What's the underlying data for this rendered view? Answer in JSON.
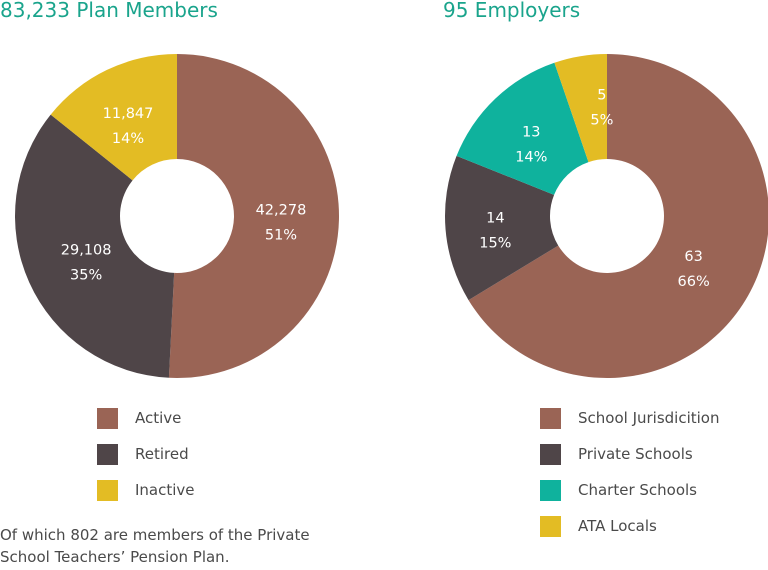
{
  "chart_data": [
    {
      "type": "pie",
      "style": "donut",
      "title": "83,233 Plan Members",
      "slices": [
        {
          "name": "Active",
          "value": 42278,
          "value_label": "42,278",
          "percent_label": "51%",
          "color": "#9a6455"
        },
        {
          "name": "Retired",
          "value": 29108,
          "value_label": "29,108",
          "percent_label": "35%",
          "color": "#4f4548"
        },
        {
          "name": "Inactive",
          "value": 11847,
          "value_label": "11,847",
          "percent_label": "14%",
          "color": "#e3bc24"
        }
      ]
    },
    {
      "type": "pie",
      "style": "donut",
      "title": "95 Employers",
      "slices": [
        {
          "name": "School Jurisdicition",
          "value": 63,
          "value_label": "63",
          "percent_label": "66%",
          "color": "#9a6455"
        },
        {
          "name": "Private Schools",
          "value": 14,
          "value_label": "14",
          "percent_label": "15%",
          "color": "#4f4548"
        },
        {
          "name": "Charter Schools",
          "value": 13,
          "value_label": "13",
          "percent_label": "14%",
          "color": "#0fb29d"
        },
        {
          "name": "ATA Locals",
          "value": 5,
          "value_label": "5",
          "percent_label": "5%",
          "color": "#e3bc24"
        }
      ]
    }
  ],
  "footnote": "Of which 802 are members of the Private School Teachers’ Pension Plan."
}
